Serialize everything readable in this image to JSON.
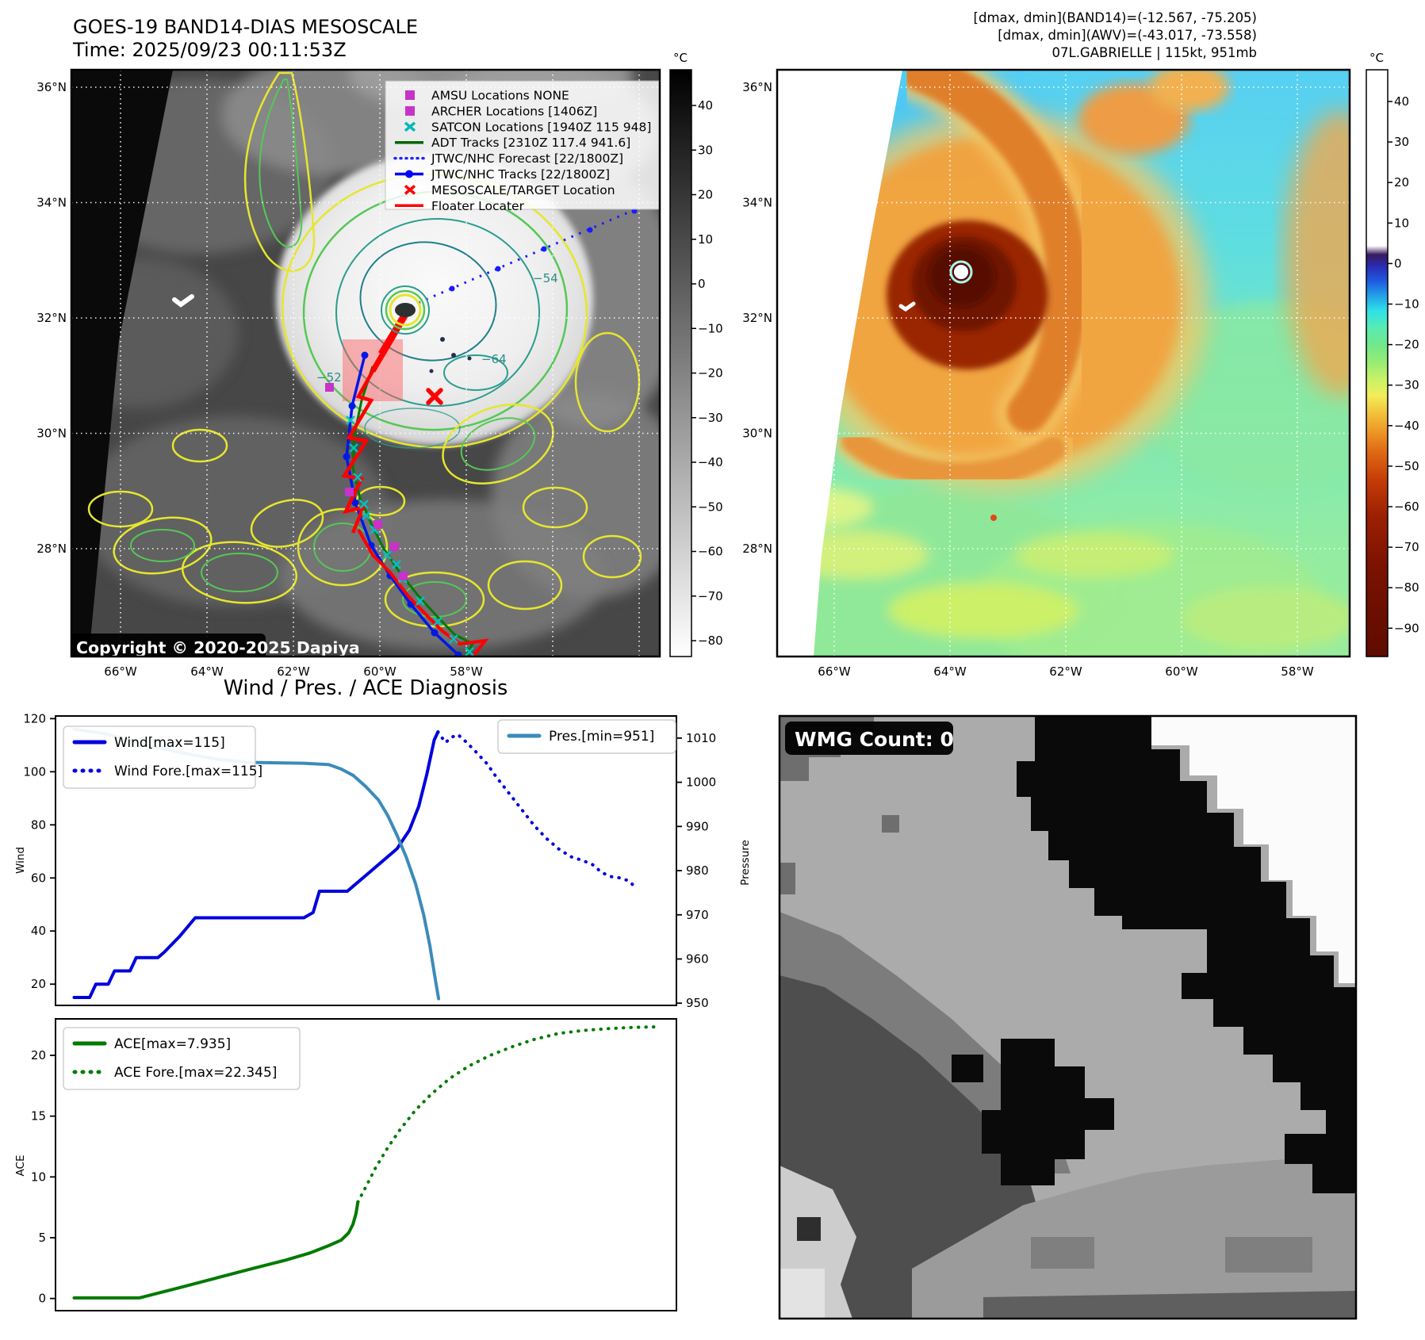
{
  "header": {
    "title_line1": "GOES-19 BAND14-DIAS MESOSCALE",
    "title_line2": "Time: 2025/09/23 00:11:53Z",
    "right_lines": [
      "[dmax, dmin](BAND14)=(-12.567, -75.205)",
      "[dmax, dmin](AWV)=(-43.017, -73.558)",
      "07L.GABRIELLE | 115kt, 951mb"
    ]
  },
  "left_map": {
    "copyright": "Copyright © 2020-2025 Dapiya",
    "lat_labels": [
      "36°N",
      "34°N",
      "32°N",
      "30°N",
      "28°N"
    ],
    "lon_labels": [
      "66°W",
      "64°W",
      "62°W",
      "60°W",
      "58°W"
    ],
    "contour_labels": [
      "−64",
      "−54",
      "−52"
    ],
    "colorbar": {
      "unit": "°C",
      "ticks": [
        "40",
        "30",
        "20",
        "10",
        "0",
        "−10",
        "−20",
        "−30",
        "−40",
        "−50",
        "−60",
        "−70",
        "−80"
      ]
    },
    "legend": [
      {
        "marker": "square",
        "color": "#c832c8",
        "label": "AMSU Locations NONE"
      },
      {
        "marker": "square",
        "color": "#c832c8",
        "label": "ARCHER Locations [1406Z]"
      },
      {
        "marker": "x",
        "color": "#00b8b8",
        "label": "SATCON Locations [1940Z 115 948]"
      },
      {
        "marker": "line",
        "color": "#006400",
        "label": "ADT Tracks [2310Z 117.4 941.6]"
      },
      {
        "marker": "dotted",
        "color": "#2222ff",
        "label": "JTWC/NHC Forecast [22/1800Z]"
      },
      {
        "marker": "line-dot",
        "color": "#0000ff",
        "label": "JTWC/NHC Tracks [22/1800Z]"
      },
      {
        "marker": "x",
        "color": "#ff0000",
        "label": "MESOSCALE/TARGET Location"
      },
      {
        "marker": "line",
        "color": "#ff0000",
        "label": "Floater Locater"
      }
    ]
  },
  "right_map": {
    "lat_labels": [
      "36°N",
      "34°N",
      "32°N",
      "30°N",
      "28°N"
    ],
    "lon_labels": [
      "66°W",
      "64°W",
      "62°W",
      "60°W",
      "58°W"
    ],
    "colorbar": {
      "unit": "°C",
      "ticks": [
        "40",
        "30",
        "20",
        "10",
        "0",
        "−10",
        "−20",
        "−30",
        "−40",
        "−50",
        "−60",
        "−70",
        "−80",
        "−90"
      ]
    }
  },
  "charts": {
    "title": "Wind / Pres. / ACE Diagnosis"
  },
  "wmg": {
    "label": "WMG Count: 0"
  },
  "chart_data": [
    {
      "type": "line",
      "panel": "wind-pressure",
      "title": "Wind / Pres. / ACE Diagnosis",
      "x_axis": {
        "label": "",
        "range": [
          0,
          100
        ],
        "tick_labels_visible": false
      },
      "left_axis": {
        "label": "Wind",
        "ticks": [
          20,
          40,
          60,
          80,
          100,
          120
        ],
        "range": [
          12,
          121
        ]
      },
      "right_axis": {
        "label": "Pressure",
        "ticks": [
          950,
          960,
          970,
          980,
          990,
          1000,
          1010
        ],
        "range": [
          949.5,
          1015
        ]
      },
      "legend_position": [
        "upper-left",
        "upper-right"
      ],
      "series": [
        {
          "name": "Wind[max=115]",
          "style": "solid",
          "color": "#0000dd",
          "axis": "left",
          "points": [
            [
              3,
              15
            ],
            [
              5.5,
              15
            ],
            [
              6.5,
              20
            ],
            [
              8.5,
              20
            ],
            [
              9.5,
              25
            ],
            [
              12,
              25
            ],
            [
              13,
              30
            ],
            [
              16.5,
              30
            ],
            [
              17.5,
              32
            ],
            [
              20,
              38
            ],
            [
              22.5,
              45
            ],
            [
              40,
              45
            ],
            [
              41.5,
              47
            ],
            [
              42.5,
              55
            ],
            [
              47,
              55
            ],
            [
              48,
              57
            ],
            [
              50.5,
              62
            ],
            [
              52.5,
              66
            ],
            [
              55,
              71
            ],
            [
              57,
              78
            ],
            [
              58.5,
              87
            ],
            [
              59.8,
              99
            ],
            [
              61,
              112
            ],
            [
              61.6,
              115
            ]
          ]
        },
        {
          "name": "Wind Fore.[max=115]",
          "style": "dotted",
          "color": "#0000dd",
          "axis": "left",
          "points": [
            [
              61.6,
              115
            ],
            [
              62.8,
              111
            ],
            [
              63.8,
              113
            ],
            [
              64.8,
              114
            ],
            [
              66,
              111.5
            ],
            [
              67.5,
              108
            ],
            [
              69.5,
              103
            ],
            [
              71,
              98
            ],
            [
              73,
              92
            ],
            [
              75,
              86
            ],
            [
              77,
              80
            ],
            [
              79,
              75
            ],
            [
              81,
              71
            ],
            [
              83,
              68
            ],
            [
              85,
              66.5
            ],
            [
              86.5,
              65
            ],
            [
              88,
              62
            ],
            [
              89.5,
              60.5
            ],
            [
              91,
              60
            ],
            [
              92.2,
              59
            ],
            [
              93.2,
              57
            ]
          ]
        },
        {
          "name": "Pres.[min=951]",
          "style": "solid",
          "color": "#3b8bba",
          "axis": "right",
          "points": [
            [
              3,
              1012
            ],
            [
              8,
              1011
            ],
            [
              12,
              1009.5
            ],
            [
              16,
              1008
            ],
            [
              21,
              1006.5
            ],
            [
              26,
              1005.2
            ],
            [
              31,
              1004.5
            ],
            [
              40,
              1004.3
            ],
            [
              44,
              1004
            ],
            [
              46,
              1003
            ],
            [
              48,
              1001.5
            ],
            [
              50,
              999
            ],
            [
              52,
              996
            ],
            [
              53.5,
              992.5
            ],
            [
              55,
              988
            ],
            [
              56.5,
              983
            ],
            [
              58,
              977
            ],
            [
              59.3,
              970
            ],
            [
              60.3,
              963
            ],
            [
              61.1,
              956
            ],
            [
              61.7,
              951
            ]
          ]
        }
      ]
    },
    {
      "type": "line",
      "panel": "ace",
      "x_axis": {
        "label": "",
        "range": [
          0,
          100
        ],
        "tick_labels_visible": false
      },
      "left_axis": {
        "label": "ACE",
        "ticks": [
          0,
          5,
          10,
          15,
          20
        ],
        "range": [
          -1,
          23
        ]
      },
      "legend_position": [
        "upper-left"
      ],
      "series": [
        {
          "name": "ACE[max=7.935]",
          "style": "solid",
          "color": "#007a00",
          "axis": "left",
          "points": [
            [
              3,
              0.05
            ],
            [
              13.5,
              0.05
            ],
            [
              20,
              0.9
            ],
            [
              26,
              1.7
            ],
            [
              32,
              2.5
            ],
            [
              37,
              3.15
            ],
            [
              41,
              3.75
            ],
            [
              44,
              4.35
            ],
            [
              46,
              4.8
            ],
            [
              47.2,
              5.4
            ],
            [
              47.9,
              6.1
            ],
            [
              48.4,
              7.0
            ],
            [
              48.7,
              7.935
            ]
          ]
        },
        {
          "name": "ACE Fore.[max=22.345]",
          "style": "dotted",
          "color": "#007a00",
          "axis": "left",
          "points": [
            [
              48.7,
              7.935
            ],
            [
              50,
              9.2
            ],
            [
              51.5,
              10.7
            ],
            [
              53.5,
              12.4
            ],
            [
              55.5,
              13.9
            ],
            [
              58,
              15.5
            ],
            [
              60.5,
              16.8
            ],
            [
              63.5,
              18.1
            ],
            [
              66.5,
              19.1
            ],
            [
              70,
              20.0
            ],
            [
              73.5,
              20.7
            ],
            [
              77,
              21.3
            ],
            [
              81,
              21.8
            ],
            [
              85,
              22.05
            ],
            [
              89,
              22.2
            ],
            [
              93,
              22.3
            ],
            [
              96.8,
              22.345
            ]
          ]
        }
      ]
    }
  ]
}
